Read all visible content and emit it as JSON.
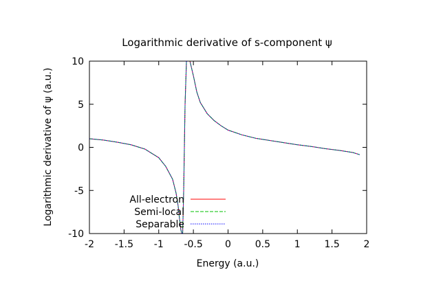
{
  "chart_data": {
    "type": "line",
    "title": "Logarithmic derivative of s-component ψ",
    "xlabel": "Energy (a.u.)",
    "ylabel": "Logarithmic derivative of ψ (a.u.)",
    "xlim": [
      -2,
      2
    ],
    "ylim": [
      -10,
      10
    ],
    "xticks": [
      -2,
      -1.5,
      -1,
      -0.5,
      0,
      0.5,
      1,
      1.5,
      2
    ],
    "yticks": [
      -10,
      -5,
      0,
      5,
      10
    ],
    "xtick_labels": [
      "-2",
      "-1.5",
      "-1",
      "-0.5",
      "0",
      "0.5",
      "1",
      "1.5",
      "2"
    ],
    "ytick_labels": [
      "-10",
      "-5",
      "0",
      "5",
      "10"
    ],
    "grid": false,
    "legend_position": "bottom-left",
    "series": [
      {
        "name": "All-electron",
        "color": "#ff0000",
        "dash": "solid"
      },
      {
        "name": "Semi-local",
        "color": "#00c000",
        "dash": "dashed"
      },
      {
        "name": "Separable",
        "color": "#0000ff",
        "dash": "dotted"
      }
    ],
    "curve": {
      "left_branch": {
        "x": [
          -2.0,
          -1.8,
          -1.6,
          -1.4,
          -1.2,
          -1.0,
          -0.9,
          -0.8,
          -0.75,
          -0.72,
          -0.7,
          -0.68,
          -0.665
        ],
        "y": [
          1.0,
          0.85,
          0.6,
          0.3,
          -0.2,
          -1.2,
          -2.2,
          -3.7,
          -5.3,
          -6.8,
          -8.3,
          -9.6,
          -10.0
        ]
      },
      "right_branch": {
        "x": [
          -0.655,
          -0.64,
          -0.63,
          -0.62,
          -0.6,
          -0.55,
          -0.5,
          -0.45,
          -0.4,
          -0.3,
          -0.2,
          -0.1,
          0.0,
          0.2,
          0.4,
          0.6,
          0.8,
          1.0,
          1.2,
          1.4,
          1.6,
          1.8,
          1.9
        ],
        "y": [
          -10.0,
          -5.0,
          0.0,
          5.0,
          10.0,
          10.0,
          8.3,
          6.4,
          5.2,
          3.9,
          3.1,
          2.5,
          2.0,
          1.45,
          1.05,
          0.8,
          0.55,
          0.3,
          0.1,
          -0.15,
          -0.35,
          -0.6,
          -0.85
        ]
      }
    }
  }
}
